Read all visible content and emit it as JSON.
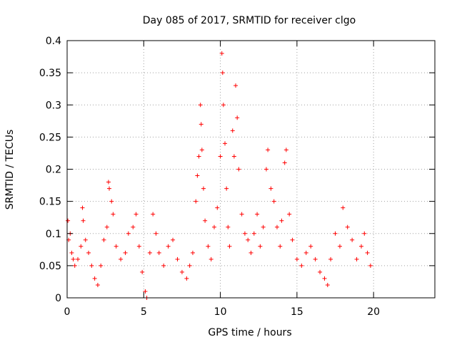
{
  "chart_data": {
    "type": "scatter",
    "title": "Day 085 of 2017, SRMTID for receiver clgo",
    "xlabel": "GPS time / hours",
    "ylabel": "SRMTID / TECUs",
    "xlim": [
      0,
      24
    ],
    "ylim": [
      0,
      0.4
    ],
    "xticks": [
      0,
      5,
      10,
      15,
      20
    ],
    "xtick_labels": [
      "0",
      "5",
      "10",
      "15",
      "20"
    ],
    "yticks": [
      0,
      0.05,
      0.1,
      0.15,
      0.2,
      0.25,
      0.3,
      0.35,
      0.4
    ],
    "ytick_labels": [
      "0",
      "0.05",
      "0.1",
      "0.15",
      "0.2",
      "0.25",
      "0.3",
      "0.35",
      "0.4"
    ],
    "grid": true,
    "marker": "+",
    "color": "#ff0000",
    "series": [
      {
        "name": "SRMTID",
        "points": [
          [
            0.05,
            0.12
          ],
          [
            0.1,
            0.09
          ],
          [
            0.2,
            0.1
          ],
          [
            0.3,
            0.07
          ],
          [
            0.4,
            0.06
          ],
          [
            0.5,
            0.05
          ],
          [
            0.7,
            0.06
          ],
          [
            0.9,
            0.08
          ],
          [
            1.0,
            0.14
          ],
          [
            1.05,
            0.12
          ],
          [
            1.2,
            0.09
          ],
          [
            1.4,
            0.07
          ],
          [
            1.6,
            0.05
          ],
          [
            1.8,
            0.03
          ],
          [
            2.0,
            0.02
          ],
          [
            2.2,
            0.05
          ],
          [
            2.4,
            0.09
          ],
          [
            2.6,
            0.11
          ],
          [
            2.7,
            0.18
          ],
          [
            2.75,
            0.17
          ],
          [
            2.9,
            0.15
          ],
          [
            3.0,
            0.13
          ],
          [
            3.2,
            0.08
          ],
          [
            3.5,
            0.06
          ],
          [
            3.8,
            0.07
          ],
          [
            4.0,
            0.1
          ],
          [
            4.3,
            0.11
          ],
          [
            4.5,
            0.13
          ],
          [
            4.7,
            0.08
          ],
          [
            4.9,
            0.04
          ],
          [
            5.1,
            0.01
          ],
          [
            5.2,
            0.0
          ],
          [
            5.4,
            0.07
          ],
          [
            5.6,
            0.13
          ],
          [
            5.8,
            0.1
          ],
          [
            6.0,
            0.07
          ],
          [
            6.3,
            0.05
          ],
          [
            6.6,
            0.08
          ],
          [
            6.9,
            0.09
          ],
          [
            7.2,
            0.06
          ],
          [
            7.5,
            0.04
          ],
          [
            7.8,
            0.03
          ],
          [
            8.0,
            0.05
          ],
          [
            8.2,
            0.07
          ],
          [
            8.4,
            0.15
          ],
          [
            8.5,
            0.19
          ],
          [
            8.6,
            0.22
          ],
          [
            8.7,
            0.3
          ],
          [
            8.75,
            0.27
          ],
          [
            8.8,
            0.23
          ],
          [
            8.9,
            0.17
          ],
          [
            9.0,
            0.12
          ],
          [
            9.2,
            0.08
          ],
          [
            9.4,
            0.06
          ],
          [
            9.6,
            0.11
          ],
          [
            9.8,
            0.14
          ],
          [
            10.0,
            0.22
          ],
          [
            10.1,
            0.38
          ],
          [
            10.15,
            0.35
          ],
          [
            10.2,
            0.3
          ],
          [
            10.3,
            0.24
          ],
          [
            10.4,
            0.17
          ],
          [
            10.5,
            0.11
          ],
          [
            10.6,
            0.08
          ],
          [
            10.8,
            0.26
          ],
          [
            10.9,
            0.22
          ],
          [
            11.0,
            0.33
          ],
          [
            11.1,
            0.28
          ],
          [
            11.2,
            0.2
          ],
          [
            11.4,
            0.13
          ],
          [
            11.6,
            0.1
          ],
          [
            11.8,
            0.09
          ],
          [
            12.0,
            0.07
          ],
          [
            12.2,
            0.1
          ],
          [
            12.4,
            0.13
          ],
          [
            12.6,
            0.08
          ],
          [
            12.8,
            0.11
          ],
          [
            13.0,
            0.2
          ],
          [
            13.1,
            0.23
          ],
          [
            13.3,
            0.17
          ],
          [
            13.5,
            0.15
          ],
          [
            13.7,
            0.11
          ],
          [
            13.9,
            0.08
          ],
          [
            14.0,
            0.12
          ],
          [
            14.2,
            0.21
          ],
          [
            14.3,
            0.23
          ],
          [
            14.5,
            0.13
          ],
          [
            14.7,
            0.09
          ],
          [
            15.0,
            0.06
          ],
          [
            15.3,
            0.05
          ],
          [
            15.6,
            0.07
          ],
          [
            15.9,
            0.08
          ],
          [
            16.2,
            0.06
          ],
          [
            16.5,
            0.04
          ],
          [
            16.8,
            0.03
          ],
          [
            17.0,
            0.02
          ],
          [
            17.2,
            0.06
          ],
          [
            17.5,
            0.1
          ],
          [
            17.8,
            0.08
          ],
          [
            18.0,
            0.14
          ],
          [
            18.3,
            0.11
          ],
          [
            18.6,
            0.09
          ],
          [
            18.9,
            0.06
          ],
          [
            19.2,
            0.08
          ],
          [
            19.4,
            0.1
          ],
          [
            19.6,
            0.07
          ],
          [
            19.8,
            0.05
          ]
        ]
      }
    ]
  }
}
